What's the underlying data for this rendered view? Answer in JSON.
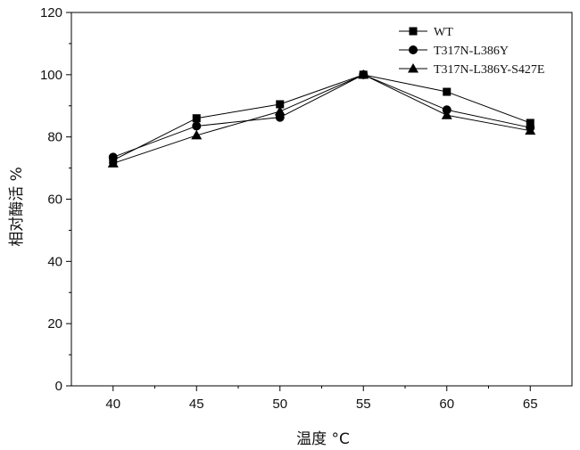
{
  "chart_data": {
    "type": "line",
    "title": "",
    "xlabel": "温度 °C",
    "ylabel": "相对酶活 %",
    "x": [
      40,
      45,
      50,
      55,
      60,
      65
    ],
    "xlim": [
      37.5,
      67.5
    ],
    "ylim": [
      0,
      120
    ],
    "xticks": [
      "40",
      "45",
      "50",
      "55",
      "60",
      "65"
    ],
    "yticks": [
      "0",
      "20",
      "40",
      "60",
      "80",
      "100",
      "120"
    ],
    "grid": false,
    "legend_position": "top-right",
    "series": [
      {
        "name": "WT",
        "marker": "square",
        "values": [
          72.5,
          86,
          90.5,
          100,
          94.5,
          84.5
        ]
      },
      {
        "name": "T317N-L386Y",
        "marker": "circle",
        "values": [
          73.5,
          83.5,
          86.3,
          100,
          88.7,
          83
        ]
      },
      {
        "name": "T317N-L386Y-S427E",
        "marker": "triangle",
        "values": [
          71.5,
          80.5,
          88.2,
          100,
          87,
          82
        ]
      }
    ],
    "colors": {
      "line": "#000000",
      "axis": "#000000"
    }
  }
}
